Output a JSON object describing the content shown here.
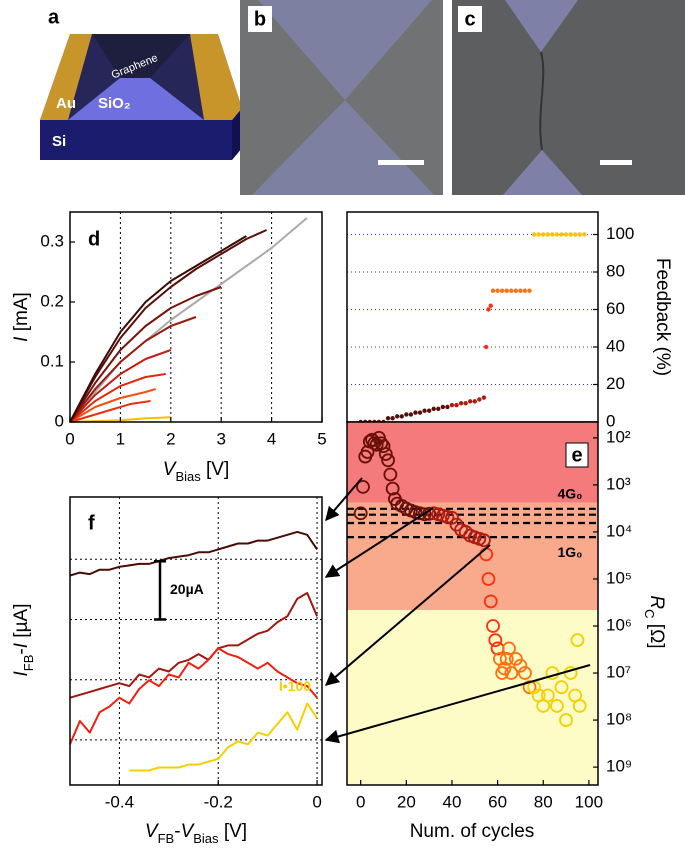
{
  "figure": {
    "panel_labels": [
      "a",
      "b",
      "c",
      "d",
      "e",
      "f"
    ]
  },
  "schematic": {
    "electrode": "Au",
    "channel": "Graphene",
    "oxide": "SiO₂",
    "substrate": "Si"
  },
  "chart_data": [
    {
      "type": "line",
      "xlabel": [
        {
          "text": "V",
          "sub": "Bias",
          "italic": true
        },
        {
          "text": " [V]"
        }
      ],
      "ylabel": [
        {
          "text": "I",
          "italic": true
        },
        {
          "text": " [mA]"
        }
      ],
      "xlim": [
        0,
        5
      ],
      "ylim": [
        0,
        0.35
      ],
      "xticks": [
        0,
        1,
        2,
        3,
        4,
        5
      ],
      "yticks": [
        0,
        0.1,
        0.2,
        0.3
      ],
      "grid": "x",
      "grid_color": "#000000",
      "yaxis_side": "left",
      "series": [
        {
          "color": "#aaaaaa",
          "x": [
            0,
            1,
            2,
            3,
            4,
            4.7
          ],
          "values": [
            0,
            0.1,
            0.17,
            0.23,
            0.29,
            0.34
          ]
        },
        {
          "color": "#f5c000",
          "x": [
            0,
            1,
            1.5,
            2
          ],
          "values": [
            0,
            0.003,
            0.006,
            0.008
          ]
        },
        {
          "color": "#e83010",
          "x": [
            0,
            0.4,
            0.8,
            1.2,
            1.6
          ],
          "values": [
            0,
            0.01,
            0.02,
            0.03,
            0.035
          ]
        },
        {
          "color": "#f05010",
          "x": [
            0,
            0.5,
            1,
            1.5,
            1.7
          ],
          "values": [
            0,
            0.025,
            0.04,
            0.05,
            0.055
          ]
        },
        {
          "color": "#e02a10",
          "x": [
            0,
            0.5,
            1,
            1.5,
            1.9
          ],
          "values": [
            0,
            0.035,
            0.06,
            0.075,
            0.08
          ]
        },
        {
          "color": "#c01e12",
          "x": [
            0,
            0.5,
            1,
            1.5,
            2
          ],
          "values": [
            0,
            0.045,
            0.08,
            0.105,
            0.12
          ]
        },
        {
          "color": "#9a1a10",
          "x": [
            0,
            0.5,
            1,
            1.5,
            2,
            2.5
          ],
          "values": [
            0,
            0.055,
            0.1,
            0.135,
            0.16,
            0.175
          ]
        },
        {
          "color": "#7a120c",
          "x": [
            0,
            0.5,
            1,
            1.5,
            2,
            2.5,
            3
          ],
          "values": [
            0,
            0.065,
            0.12,
            0.16,
            0.19,
            0.21,
            0.225
          ]
        },
        {
          "color": "#5a0e08",
          "x": [
            0,
            0.5,
            1,
            1.5,
            2,
            2.5,
            3,
            3.5,
            3.9
          ],
          "values": [
            0,
            0.075,
            0.14,
            0.19,
            0.225,
            0.255,
            0.28,
            0.305,
            0.32
          ]
        },
        {
          "color": "#3a0a05",
          "x": [
            0,
            0.5,
            1,
            1.5,
            2,
            2.5,
            3,
            3.5
          ],
          "values": [
            0,
            0.08,
            0.15,
            0.2,
            0.235,
            0.26,
            0.285,
            0.31
          ]
        }
      ]
    },
    {
      "type": "scatter",
      "marker": "dot",
      "ylabel": "Feedback (%)",
      "xlim": [
        -6,
        104
      ],
      "ylim": [
        0,
        112
      ],
      "yticks": [
        0,
        20,
        40,
        60,
        80,
        100
      ],
      "grid": "y",
      "grid_color": "#3333cc",
      "yaxis_side": "right",
      "series": [
        {
          "color": "#5a0e08",
          "x": [
            0,
            2,
            4,
            6,
            8,
            10,
            12,
            14,
            16,
            18,
            20,
            22,
            24,
            26,
            28,
            30,
            32,
            34,
            36,
            38
          ],
          "values": [
            0,
            0,
            0,
            0,
            0,
            0,
            2,
            2,
            3,
            3,
            4,
            4,
            5,
            5,
            6,
            6,
            7,
            7,
            8,
            8
          ]
        },
        {
          "color": "#b01a10",
          "x": [
            40,
            42,
            44,
            46,
            48,
            50,
            52,
            54
          ],
          "values": [
            9,
            9,
            10,
            10,
            11,
            11,
            12,
            13
          ]
        },
        {
          "color": "#ff3010",
          "x": [
            55,
            56,
            57
          ],
          "values": [
            40,
            60,
            62
          ]
        },
        {
          "color": "#ff7010",
          "x": [
            58,
            60,
            62,
            64,
            66,
            68,
            70,
            72,
            74
          ],
          "values": [
            70,
            70,
            70,
            70,
            70,
            70,
            70,
            70,
            70
          ]
        },
        {
          "color": "#ffc000",
          "x": [
            76,
            78,
            80,
            82,
            84,
            86,
            88,
            90,
            92,
            94,
            96,
            98
          ],
          "values": [
            100,
            100,
            100,
            100,
            100,
            100,
            100,
            100,
            100,
            100,
            100,
            100
          ]
        }
      ]
    },
    {
      "type": "scatter",
      "marker": "ring",
      "xlabel": "Num. of cycles",
      "ylabel": [
        {
          "text": "R",
          "sub": "C",
          "italic": true
        },
        {
          "text": " [Ω]"
        }
      ],
      "xlim": [
        -6,
        104
      ],
      "xticks": [
        0,
        20,
        40,
        60,
        80,
        100
      ],
      "ylim": [
        46,
        2400000000
      ],
      "yscale": "log",
      "inverted": true,
      "yaxis_side": "right",
      "yticks": [
        {
          "value": 100,
          "label": "10²"
        },
        {
          "value": 1000,
          "label": "10³"
        },
        {
          "value": 10000,
          "label": "10⁴"
        },
        {
          "value": 100000,
          "label": "10⁵"
        },
        {
          "value": 1000000,
          "label": "10⁶"
        },
        {
          "value": 10000000,
          "label": "10⁷"
        },
        {
          "value": 100000000,
          "label": "10⁸"
        },
        {
          "value": 1000000000,
          "label": "10⁹"
        }
      ],
      "regions": [
        {
          "from": 46,
          "to": 2400,
          "color": "#f47a7b"
        },
        {
          "from": 2400,
          "to": 460000,
          "color": "#f9aa8c"
        },
        {
          "from": 460000,
          "to": 2400000000,
          "color": "#fdfcc6"
        }
      ],
      "reference_lines": [
        {
          "value": 3226,
          "label": "4G₀"
        },
        {
          "value": 4301
        },
        {
          "value": 6452
        },
        {
          "value": 12906,
          "label": "1G₀"
        }
      ],
      "series": [
        {
          "color": "#6a1008",
          "x": [
            0,
            1,
            2,
            3,
            4,
            5,
            6,
            7,
            8,
            9,
            10,
            11,
            12,
            13,
            14,
            15,
            16,
            18,
            20,
            22,
            24,
            26,
            28,
            30
          ],
          "values": [
            4000,
            1100,
            250,
            200,
            120,
            110,
            130,
            140,
            100,
            130,
            150,
            220,
            300,
            600,
            1200,
            2000,
            2500,
            2800,
            3200,
            3500,
            3800,
            4000,
            4200,
            4100
          ]
        },
        {
          "color": "#b01a10",
          "x": [
            32,
            34,
            36,
            38,
            40,
            42,
            44,
            46,
            48,
            50,
            52,
            54
          ],
          "values": [
            4000,
            4200,
            4500,
            4800,
            5000,
            7000,
            9000,
            10000,
            12000,
            13000,
            14000,
            15000
          ]
        },
        {
          "color": "#ff3010",
          "x": [
            55,
            56,
            57,
            58,
            59,
            60
          ],
          "values": [
            30000,
            100000,
            300000,
            1000000,
            2000000,
            3000000
          ]
        },
        {
          "color": "#ff7010",
          "x": [
            61,
            62,
            63,
            64,
            65,
            66,
            68,
            70,
            72,
            74
          ],
          "values": [
            5000000,
            10000000,
            8000000,
            5000000,
            3000000,
            10000000,
            5000000,
            7000000,
            10000000,
            20000000
          ]
        },
        {
          "color": "#f5d000",
          "x": [
            76,
            78,
            80,
            82,
            84,
            86,
            88,
            90,
            92,
            94,
            95,
            96
          ],
          "values": [
            20000000,
            30000000,
            50000000,
            30000000,
            10000000,
            50000000,
            20000000,
            100000000,
            10000000,
            30000000,
            2000000,
            50000000
          ]
        }
      ]
    },
    {
      "type": "line",
      "xlabel": [
        {
          "text": "V",
          "sub": "FB",
          "italic": true
        },
        {
          "text": "-"
        },
        {
          "text": "V",
          "sub": "Bias",
          "italic": true
        },
        {
          "text": " [V]"
        }
      ],
      "ylabel": [
        {
          "text": "I",
          "sub": "FB",
          "italic": true
        },
        {
          "text": "-"
        },
        {
          "text": "I",
          "italic": true
        },
        {
          "text": " [µA]"
        }
      ],
      "xlim": [
        -0.5,
        0.01
      ],
      "xticks": [
        -0.4,
        -0.2,
        0
      ],
      "ylim": [
        0,
        99
      ],
      "ygrid": [
        15.5,
        36.2,
        56.9,
        77.6
      ],
      "grid": "both",
      "grid_color": "#000000",
      "scale_bar": {
        "value": 20,
        "label": "20µA"
      },
      "x": [
        -0.5,
        -0.48,
        -0.46,
        -0.44,
        -0.42,
        -0.4,
        -0.38,
        -0.36,
        -0.34,
        -0.32,
        -0.3,
        -0.28,
        -0.26,
        -0.24,
        -0.22,
        -0.2,
        -0.18,
        -0.16,
        -0.14,
        -0.12,
        -0.1,
        -0.08,
        -0.06,
        -0.04,
        -0.02,
        0
      ],
      "series": [
        {
          "color": "#4a0c06",
          "values": [
            72,
            73,
            72.5,
            74,
            74,
            75,
            75.5,
            76,
            76,
            77,
            78,
            78.5,
            79,
            80,
            80,
            81,
            82,
            83,
            83,
            84,
            84,
            85,
            86,
            87,
            86,
            81
          ]
        },
        {
          "color": "#a01810",
          "values": [
            30,
            31,
            32,
            33,
            34,
            35,
            34,
            38,
            37,
            40,
            39,
            42,
            43,
            45,
            43,
            47,
            48,
            48,
            50,
            52,
            53,
            56,
            58,
            64,
            66,
            58
          ]
        },
        {
          "color": "#f02010",
          "values": [
            14,
            22,
            18,
            25,
            27,
            30,
            28,
            33,
            36,
            34,
            38,
            37,
            42,
            40,
            43,
            47,
            45,
            44,
            42,
            40,
            42,
            39,
            37,
            35,
            34,
            30
          ]
        },
        {
          "color": "#f5d000",
          "annotation": "I•100",
          "values": [
            null,
            null,
            null,
            null,
            null,
            null,
            5,
            5,
            5,
            6,
            6,
            6,
            7,
            7,
            8,
            9,
            13,
            15,
            14,
            18,
            17,
            21,
            25,
            19,
            28,
            23
          ]
        }
      ]
    }
  ]
}
